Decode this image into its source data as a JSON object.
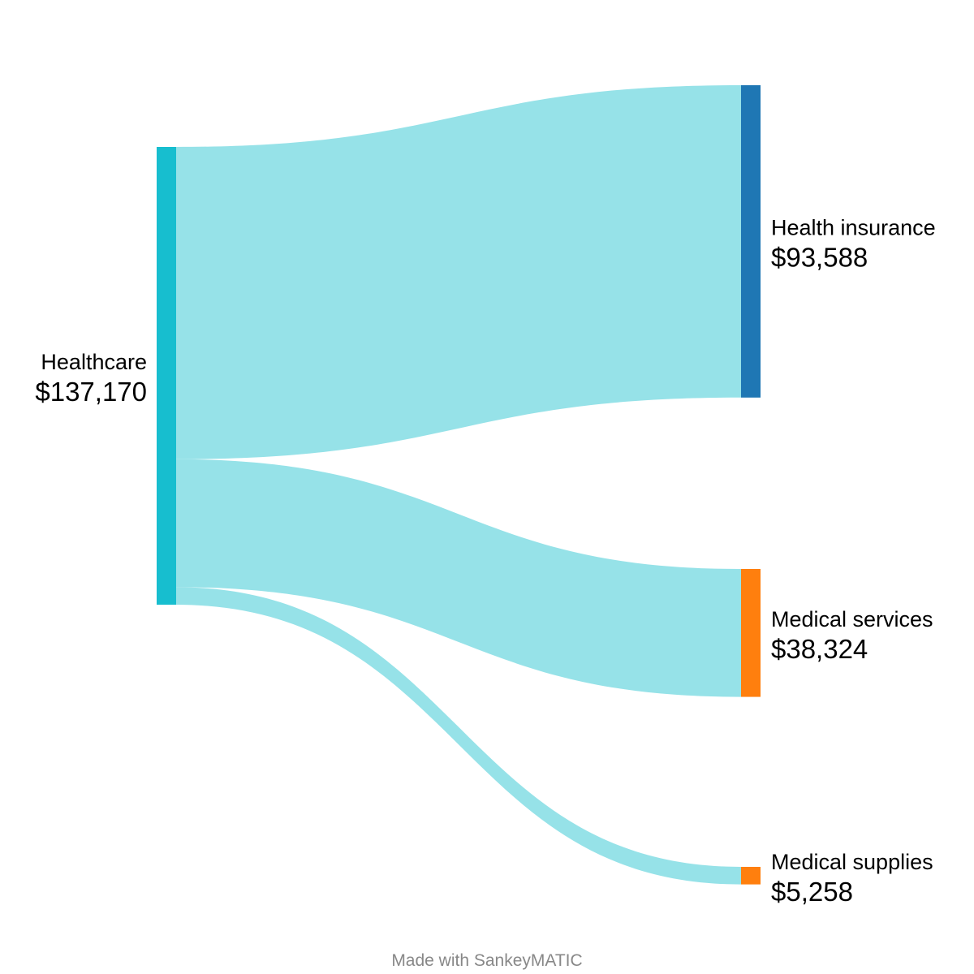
{
  "chart_data": {
    "type": "sankey",
    "colors": {
      "link": "#96e2e8",
      "Healthcare": "#17becf",
      "Health insurance": "#1f77b4",
      "Medical services": "#ff7f0e",
      "Medical supplies": "#ff7f0e"
    },
    "nodes": [
      {
        "id": "healthcare",
        "name": "Healthcare",
        "value": 137170,
        "value_label": "$137,170",
        "column": 0
      },
      {
        "id": "health-insurance",
        "name": "Health insurance",
        "value": 93588,
        "value_label": "$93,588",
        "column": 1
      },
      {
        "id": "medical-services",
        "name": "Medical services",
        "value": 38324,
        "value_label": "$38,324",
        "column": 1
      },
      {
        "id": "medical-supplies",
        "name": "Medical supplies",
        "value": 5258,
        "value_label": "$5,258",
        "column": 1
      }
    ],
    "links": [
      {
        "source": "healthcare",
        "target": "health-insurance",
        "value": 93588
      },
      {
        "source": "healthcare",
        "target": "medical-services",
        "value": 38324
      },
      {
        "source": "healthcare",
        "target": "medical-supplies",
        "value": 5258
      }
    ]
  },
  "footer": {
    "credit": "Made with SankeyMATIC"
  }
}
